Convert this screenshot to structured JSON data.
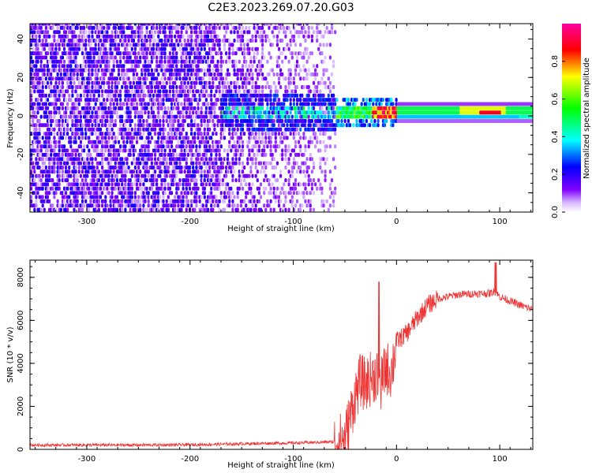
{
  "figure": {
    "title": "C2E3.2023.269.07.20.G03"
  },
  "chart_data": [
    {
      "type": "heatmap",
      "xlabel": "Height of straight line (km)",
      "ylabel": "Frequency (Hz)",
      "xlim": [
        -355,
        132
      ],
      "ylim": [
        -50,
        48
      ],
      "xticks": [
        -300,
        -200,
        -100,
        0,
        100
      ],
      "yticks": [
        -40,
        -20,
        0,
        20,
        40
      ],
      "x_tick_labels": [
        "-300",
        "-200",
        "-100",
        "0",
        "100"
      ],
      "y_tick_labels": [
        "-40",
        "-20",
        "0",
        "20",
        "40"
      ],
      "colorbar": {
        "label": "Normalized spectral amplitude",
        "range": [
          0,
          1
        ],
        "ticks": [
          0.0,
          0.2,
          0.4,
          0.6,
          0.8
        ],
        "tick_labels": [
          "0.0",
          "0.2",
          "0.4",
          "0.6",
          "0.8"
        ],
        "colormap": [
          "#ffffff",
          "#8000ff",
          "#0000ff",
          "#00ffff",
          "#00ff00",
          "#ffff00",
          "#ff0000",
          "#ff00a0"
        ]
      },
      "features": {
        "noise_region_x": [
          -355,
          -60
        ],
        "signal_line_freq": 1,
        "signal_start_x": -60,
        "signal_peak_x": [
          80,
          100
        ]
      }
    },
    {
      "type": "line",
      "xlabel": "Height of straight line (km)",
      "ylabel": "SNR (10 * v/v)",
      "xlim": [
        -355,
        132
      ],
      "ylim": [
        0,
        8800
      ],
      "xticks": [
        -300,
        -200,
        -100,
        0,
        100
      ],
      "yticks": [
        0,
        2000,
        4000,
        6000,
        8000
      ],
      "x_tick_labels": [
        "-300",
        "-200",
        "-100",
        "0",
        "100"
      ],
      "y_tick_labels": [
        "0",
        "2000",
        "4000",
        "6000",
        "8000"
      ],
      "color": "#ee3333",
      "series": [
        {
          "x": [
            -355,
            -300,
            -250,
            -200,
            -150,
            -100,
            -80,
            -60,
            -50,
            -45,
            -40,
            -35,
            -30,
            -25,
            -20,
            -15,
            -10,
            -5,
            0,
            5,
            10,
            20,
            30,
            40,
            60,
            80,
            90,
            95,
            100,
            110,
            120,
            132
          ],
          "values": [
            200,
            200,
            200,
            210,
            260,
            300,
            320,
            350,
            500,
            1500,
            2500,
            3200,
            3000,
            3300,
            3500,
            3000,
            3800,
            3600,
            5000,
            5200,
            5400,
            6100,
            6700,
            7000,
            7200,
            7250,
            7250,
            7350,
            7100,
            6900,
            6700,
            6500
          ]
        }
      ]
    }
  ]
}
